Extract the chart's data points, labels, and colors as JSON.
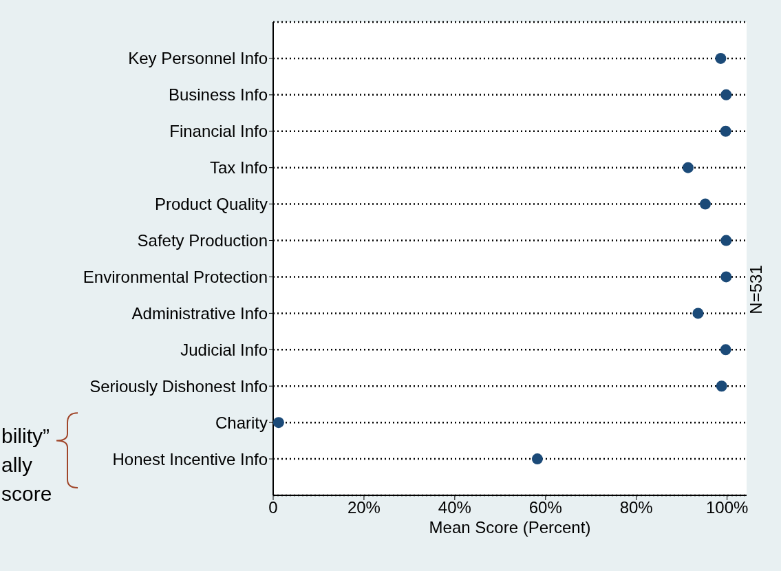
{
  "chart_data": {
    "type": "scatter",
    "categories": [
      "Key Personnel Info",
      "Business Info",
      "Financial Info",
      "Tax Info",
      "Product Quality",
      "Safety Production",
      "Environmental Protection",
      "Administrative Info",
      "Judicial Info",
      "Seriously Dishonest Info",
      "Charity",
      "Honest Incentive Info"
    ],
    "values": [
      98.6,
      99.8,
      99.7,
      91.4,
      95.2,
      99.8,
      99.8,
      93.6,
      99.7,
      98.8,
      1.2,
      58.2
    ],
    "color": "#1b4a78",
    "orientation": "horizontal",
    "marker": "circle",
    "grid": "y",
    "line_style": "dotted",
    "xlabel": "Mean Score (Percent)",
    "xlim": [
      0,
      104.3
    ],
    "xticks": [
      0,
      {
        "value": 20,
        "label": "20%"
      },
      {
        "value": 40,
        "label": "40%"
      },
      {
        "value": 60,
        "label": "60%"
      },
      {
        "value": 80,
        "label": "80%"
      },
      {
        "value": 100,
        "label": "100%"
      }
    ],
    "annotations": [
      "bility”\nally\nscore",
      "N=531"
    ]
  }
}
